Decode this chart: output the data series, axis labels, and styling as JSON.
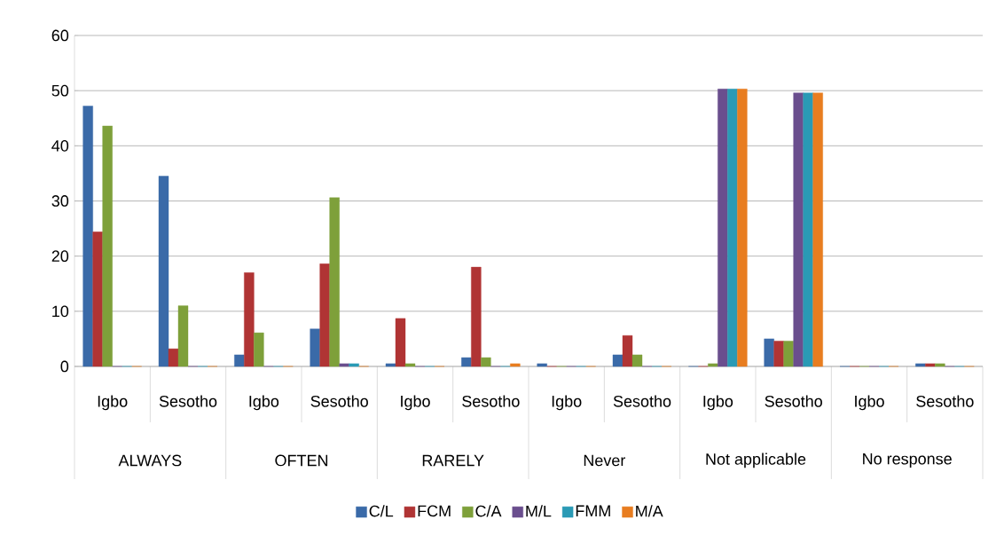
{
  "chart_data": {
    "type": "bar",
    "categories": [
      "Igbo",
      "Sesotho",
      "Igbo",
      "Sesotho",
      "Igbo",
      "Sesotho",
      "Igbo",
      "Sesotho",
      "Igbo",
      "Sesotho",
      "Igbo",
      "Sesotho"
    ],
    "annotations": [
      "ALWAYS",
      "OFTEN",
      "RARELY",
      "Never",
      "Not applicable",
      "No response"
    ],
    "series": [
      {
        "name": "C/L",
        "color": "#3a6aa8",
        "values": [
          47.2,
          34.5,
          2.1,
          6.8,
          0.5,
          1.6,
          0.5,
          2.1,
          0,
          5,
          0,
          0.5
        ]
      },
      {
        "name": "FCM",
        "color": "#b03434",
        "values": [
          24.4,
          3.2,
          17,
          18.6,
          8.7,
          18,
          0,
          5.6,
          0,
          4.6,
          0,
          0.5
        ]
      },
      {
        "name": "C/A",
        "color": "#7ea03a",
        "values": [
          43.6,
          11,
          6.1,
          30.6,
          0.5,
          1.6,
          0,
          2.1,
          0.5,
          4.6,
          0,
          0.5
        ]
      },
      {
        "name": "M/L",
        "color": "#6a4e8e",
        "values": [
          0,
          0,
          0,
          0.5,
          0,
          0,
          0,
          0,
          50.3,
          49.6,
          0,
          0
        ]
      },
      {
        "name": "FMM",
        "color": "#2a9ab5",
        "values": [
          0,
          0,
          0,
          0.5,
          0,
          0,
          0,
          0,
          50.3,
          49.6,
          0,
          0
        ]
      },
      {
        "name": "M/A",
        "color": "#e87d20",
        "values": [
          0,
          0,
          0,
          0,
          0,
          0.5,
          0,
          0,
          50.3,
          49.6,
          0,
          0
        ]
      }
    ],
    "ylim": [
      0,
      60
    ],
    "yticks": [
      0,
      10,
      20,
      30,
      40,
      50,
      60
    ],
    "grid": "y",
    "legend": "bottom"
  }
}
